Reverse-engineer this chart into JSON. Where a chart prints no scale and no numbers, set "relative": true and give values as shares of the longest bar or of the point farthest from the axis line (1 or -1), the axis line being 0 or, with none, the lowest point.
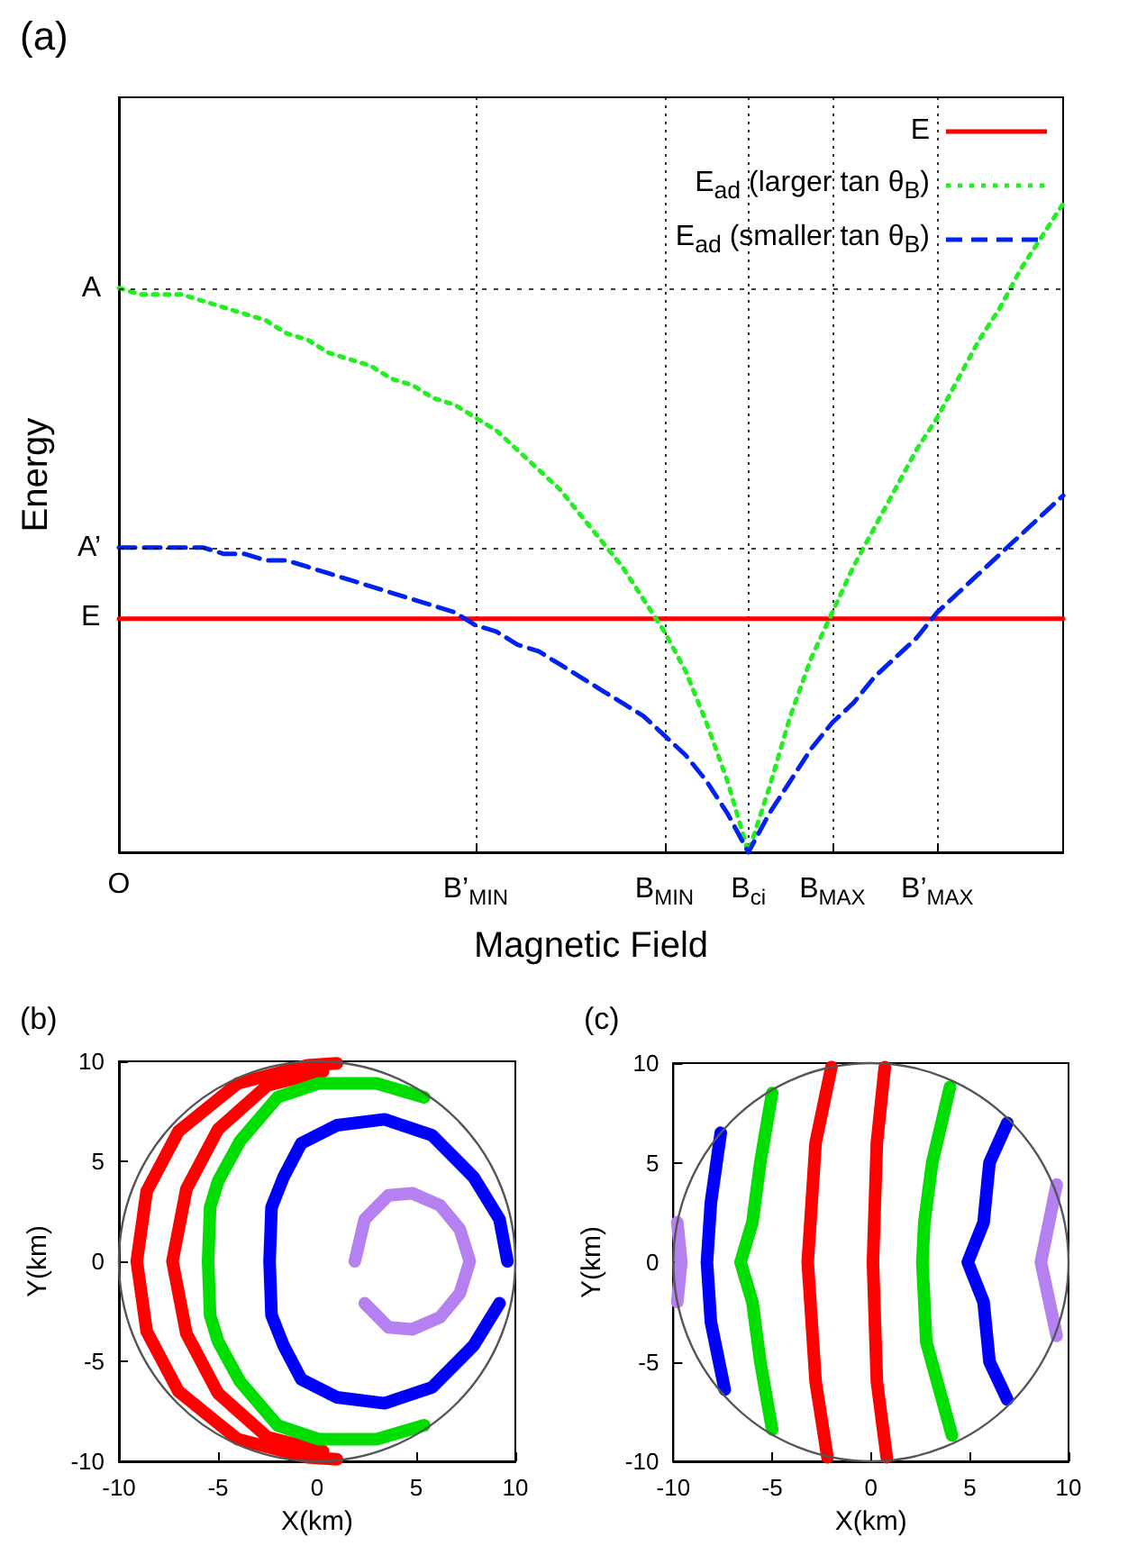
{
  "chart_data": [
    {
      "type": "line",
      "title": "(a)",
      "xlabel": "Magnetic Field",
      "ylabel": "Energy",
      "relative": true,
      "categories": [
        "O",
        null,
        null,
        null,
        null,
        null,
        null,
        null,
        null,
        null,
        null,
        null,
        null,
        null,
        null,
        null,
        null,
        "B’$_{MIN}$",
        null,
        null,
        null,
        null,
        null,
        null,
        null,
        null,
        "B$_{MIN}$",
        null,
        null,
        null,
        "B$_{ci}$",
        null,
        null,
        null,
        "B$_{MAX}$",
        null,
        null,
        null,
        null,
        "B’$_{MAX}$",
        null,
        null,
        null,
        null,
        null,
        null
      ],
      "grid": "x",
      "legend": "top right",
      "marker": "none",
      "ref_lines": [
        {
          "axis": "y",
          "value": 0.87,
          "label": "A",
          "color": "#000000",
          "line_style": "dotted"
        },
        {
          "axis": "y",
          "value": 0.47,
          "label": "A’",
          "color": "#000000",
          "line_style": "dotted"
        }
      ],
      "annotations": [
        {
          "text": "E",
          "x": "O",
          "y": 0.36
        }
      ],
      "series": [
        {
          "name": "E",
          "color": "#ff0000",
          "line_style": "solid",
          "values": [
            0.36,
            0.36,
            0.36,
            0.36,
            0.36,
            0.36,
            0.36,
            0.36,
            0.36,
            0.36,
            0.36,
            0.36,
            0.36,
            0.36,
            0.36,
            0.36,
            0.36,
            0.36,
            0.36,
            0.36,
            0.36,
            0.36,
            0.36,
            0.36,
            0.36,
            0.36,
            0.36,
            0.36,
            0.36,
            0.36,
            0.36,
            0.36,
            0.36,
            0.36,
            0.36,
            0.36,
            0.36,
            0.36,
            0.36,
            0.36,
            0.36,
            0.36,
            0.36,
            0.36,
            0.36,
            0.36
          ]
        },
        {
          "name": "E$_{ad}$ (larger tan θ$_{B}$)",
          "color": "#22ee22",
          "line_style": "dotted",
          "values": [
            0.87,
            0.86,
            0.86,
            0.86,
            0.85,
            0.84,
            0.83,
            0.82,
            0.8,
            0.79,
            0.77,
            0.76,
            0.75,
            0.73,
            0.72,
            0.7,
            0.69,
            0.67,
            0.65,
            0.62,
            0.59,
            0.56,
            0.52,
            0.48,
            0.44,
            0.39,
            0.34,
            0.28,
            0.2,
            0.11,
            0,
            0.1,
            0.21,
            0.3,
            0.37,
            0.44,
            0.5,
            0.56,
            0.62,
            0.67,
            0.73,
            0.79,
            0.84,
            0.9,
            0.95,
            1.0
          ]
        },
        {
          "name": "E$_{ad}$ (smaller tan θ$_{B}$)",
          "color": "#0022ee",
          "line_style": "dashed",
          "values": [
            0.47,
            0.47,
            0.47,
            0.47,
            0.47,
            0.46,
            0.46,
            0.45,
            0.45,
            0.44,
            0.43,
            0.42,
            0.41,
            0.4,
            0.39,
            0.38,
            0.37,
            0.35,
            0.34,
            0.32,
            0.31,
            0.29,
            0.27,
            0.25,
            0.23,
            0.21,
            0.18,
            0.15,
            0.11,
            0.06,
            0,
            0.06,
            0.11,
            0.16,
            0.2,
            0.23,
            0.27,
            0.3,
            0.33,
            0.37,
            0.4,
            0.43,
            0.46,
            0.49,
            0.52,
            0.55
          ]
        }
      ]
    },
    {
      "type": "line",
      "title": "(b)",
      "xlabel": "X(km)",
      "ylabel": "Y(km)",
      "xlim": [
        -10,
        10
      ],
      "ylim": [
        -10,
        10
      ],
      "xticks": [
        -10,
        -5,
        0,
        5,
        10
      ],
      "yticks": [
        -10,
        -5,
        0,
        5,
        10
      ],
      "marker": "none",
      "series": [
        {
          "color": "#ff0000",
          "x": [
            1,
            -0.5,
            -4,
            -7,
            -8.6,
            -9.1,
            -8.6,
            -7,
            -4,
            -0.5,
            1
          ],
          "values": [
            9.9,
            9.8,
            8.9,
            6.5,
            3.5,
            0,
            -3.5,
            -6.5,
            -8.9,
            -9.8,
            -9.9
          ]
        },
        {
          "color": "#ff0000",
          "x": [
            0.3,
            -2.5,
            -5,
            -6.6,
            -7.3,
            -6.6,
            -5,
            -2.5,
            0.3
          ],
          "values": [
            9.5,
            8.8,
            6.6,
            3.6,
            0,
            -3.6,
            -6.6,
            -8.8,
            -9.5
          ]
        },
        {
          "color": "#00dd00",
          "x": [
            5.4,
            3,
            0.1,
            -2,
            -3.9,
            -5,
            -5.4,
            -5.5,
            -5.4,
            -5,
            -3.9,
            -2,
            0.1,
            3,
            5.4
          ],
          "values": [
            8.2,
            8.9,
            8.9,
            8.2,
            6,
            4,
            2.7,
            0,
            -2.7,
            -4,
            -6,
            -8.2,
            -8.9,
            -8.9,
            -8.2
          ]
        },
        {
          "color": "#0000ff",
          "x": [
            9.6,
            9.2,
            7.9,
            5.8,
            3.4,
            1,
            -0.8,
            -1.7,
            -2.3,
            -2.4,
            -2.3,
            -1.7,
            -0.8,
            1,
            3.4,
            5.8,
            7.9,
            9.2
          ],
          "values": [
            0,
            2.1,
            4.2,
            6.3,
            7.1,
            6.8,
            5.9,
            4.2,
            2.7,
            0,
            -2.7,
            -4.2,
            -5.9,
            -6.8,
            -7.1,
            -6.3,
            -4.2,
            -2.1
          ]
        },
        {
          "color": "#b580f0",
          "x": [
            1.9,
            2.4,
            3.6,
            4.8,
            6.2,
            7.2,
            7.7,
            7.2,
            6.2,
            4.8,
            3.6,
            2.4
          ],
          "values": [
            0,
            2.1,
            3.3,
            3.4,
            2.8,
            1.6,
            0,
            -1.6,
            -2.8,
            -3.4,
            -3.3,
            -2.1
          ]
        }
      ]
    },
    {
      "type": "line",
      "title": "(c)",
      "xlabel": "X(km)",
      "ylabel": "Y(km)",
      "xlim": [
        -10,
        10
      ],
      "ylim": [
        -10,
        10
      ],
      "xticks": [
        -10,
        -5,
        0,
        5,
        10
      ],
      "yticks": [
        -10,
        -5,
        0,
        5,
        10
      ],
      "marker": "none",
      "series": [
        {
          "color": "#b580f0",
          "x": [
            -9.8,
            -9.6,
            -9.8
          ],
          "values": [
            2,
            0,
            -2
          ]
        },
        {
          "color": "#0000ff",
          "x": [
            -7.6,
            -8.1,
            -8.3,
            -8.1,
            -7.4
          ],
          "values": [
            6.5,
            3,
            0,
            -3,
            -6.4
          ]
        },
        {
          "color": "#00dd00",
          "x": [
            -5,
            -5.6,
            -6,
            -6.6,
            -6,
            -5.6,
            -5
          ],
          "values": [
            8.5,
            5,
            2,
            0,
            -2,
            -5,
            -8.4
          ]
        },
        {
          "color": "#ff0000",
          "x": [
            -2,
            -2.8,
            -3.2,
            -2.8,
            -2.2
          ],
          "values": [
            9.8,
            6,
            0,
            -6,
            -9.8
          ]
        },
        {
          "color": "#ff0000",
          "x": [
            0.7,
            0.3,
            0.1,
            0.3,
            0.8
          ],
          "values": [
            9.8,
            6,
            0,
            -6,
            -9.8
          ]
        },
        {
          "color": "#00dd00",
          "x": [
            4,
            3.1,
            2.7,
            2.6,
            2.8,
            4.1
          ],
          "values": [
            8.8,
            5,
            2,
            0,
            -4,
            -8.7
          ]
        },
        {
          "color": "#0000ff",
          "x": [
            6.9,
            6,
            5.7,
            4.9,
            5.7,
            6,
            6.9
          ],
          "values": [
            7,
            5,
            2,
            0,
            -2,
            -5,
            -6.9
          ]
        },
        {
          "color": "#b580f0",
          "x": [
            9.4,
            8.6,
            9.4
          ],
          "values": [
            3.9,
            0,
            -3.7
          ]
        }
      ]
    }
  ]
}
